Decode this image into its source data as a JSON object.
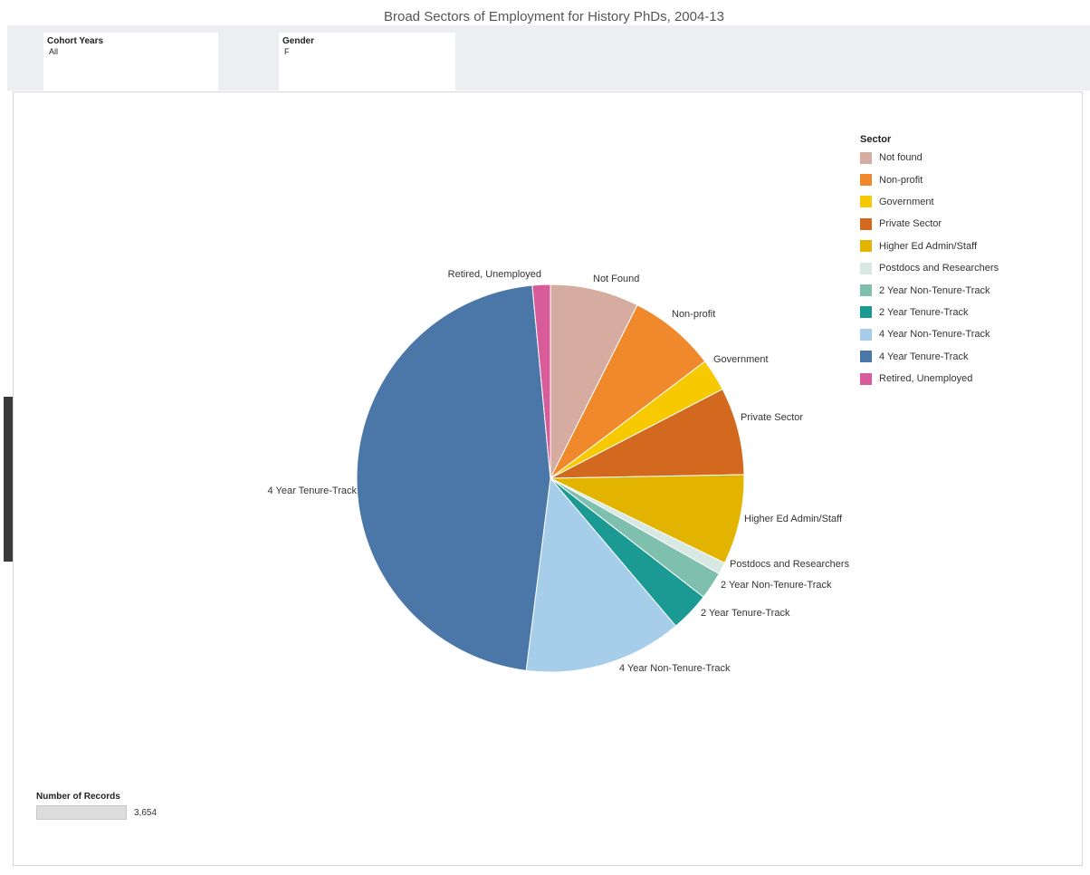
{
  "header": {
    "title": "Broad Sectors of Employment for History PhDs, 2004-13"
  },
  "filters": [
    {
      "label": "Cohort Years",
      "value": "All"
    },
    {
      "label": "Gender",
      "value": "F"
    }
  ],
  "legend": {
    "title": "Sector",
    "items": [
      {
        "label": "Not found",
        "color": "#d6aca0"
      },
      {
        "label": "Non-profit",
        "color": "#f0892b"
      },
      {
        "label": "Government",
        "color": "#f7c900"
      },
      {
        "label": "Private Sector",
        "color": "#d2691e"
      },
      {
        "label": "Higher Ed Admin/Staff",
        "color": "#e2b400"
      },
      {
        "label": "Postdocs and Researchers",
        "color": "#d8e8e2"
      },
      {
        "label": "2 Year Non-Tenure-Track",
        "color": "#7fbfae"
      },
      {
        "label": "2 Year Tenure-Track",
        "color": "#1a9a92"
      },
      {
        "label": "4 Year Non-Tenure-Track",
        "color": "#a6cdea"
      },
      {
        "label": "4 Year Tenure-Track",
        "color": "#4a76a8"
      },
      {
        "label": "Retired, Unemployed",
        "color": "#d95c9a"
      }
    ]
  },
  "records": {
    "label": "Number of Records",
    "value": "3,654",
    "fill_fraction": 1.0
  },
  "chart_data": {
    "type": "pie",
    "title": "Broad Sectors of Employment for History PhDs, 2004-13",
    "slices": [
      {
        "label": "Not Found",
        "value": 7.4,
        "color": "#d6aca0"
      },
      {
        "label": "Non-profit",
        "value": 7.3,
        "color": "#f0892b"
      },
      {
        "label": "Government",
        "value": 2.7,
        "color": "#f7c900"
      },
      {
        "label": "Private Sector",
        "value": 7.3,
        "color": "#d2691e"
      },
      {
        "label": "Higher Ed Admin/Staff",
        "value": 7.5,
        "color": "#e2b400"
      },
      {
        "label": "Postdocs and Researchers",
        "value": 1.0,
        "color": "#d8e8e2"
      },
      {
        "label": "2 Year Non-Tenure-Track",
        "value": 2.3,
        "color": "#7fbfae"
      },
      {
        "label": "2 Year Tenure-Track",
        "value": 3.3,
        "color": "#1a9a92"
      },
      {
        "label": "4 Year Non-Tenure-Track",
        "value": 13.2,
        "color": "#a6cdea"
      },
      {
        "label": "4 Year Tenure-Track",
        "value": 46.5,
        "color": "#4a76a8"
      },
      {
        "label": "Retired, Unemployed",
        "value": 1.5,
        "color": "#d95c9a"
      }
    ],
    "legend_position": "top-right"
  }
}
